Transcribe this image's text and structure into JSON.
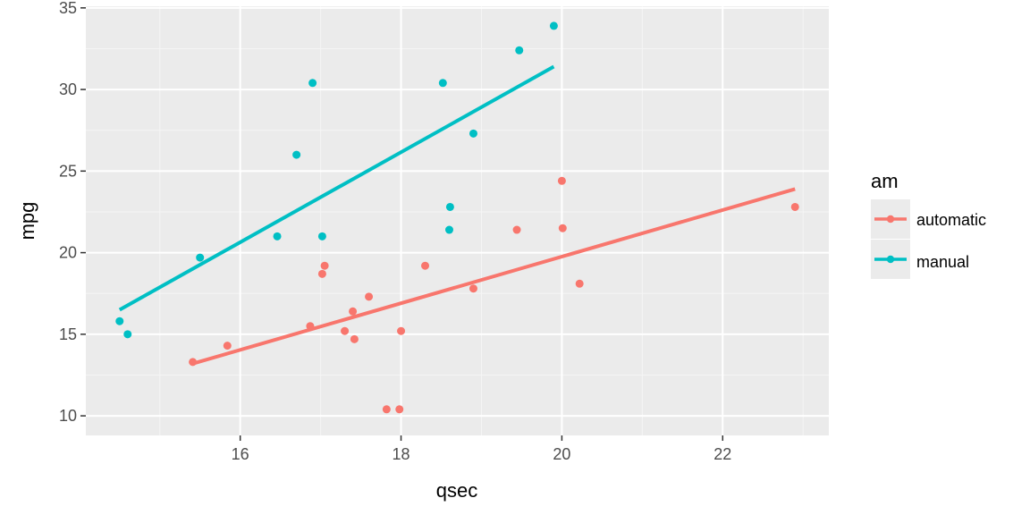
{
  "chart_data": {
    "type": "scatter",
    "title": "",
    "xlabel": "qsec",
    "ylabel": "mpg",
    "xlim": [
      14.08,
      23.32
    ],
    "ylim": [
      8.8,
      35.1
    ],
    "x_ticks": [
      16,
      18,
      20,
      22
    ],
    "y_ticks": [
      10,
      15,
      20,
      25,
      30,
      35
    ],
    "x_tick_labels": [
      "16",
      "18",
      "20",
      "22"
    ],
    "y_tick_labels": [
      "10",
      "15",
      "20",
      "25",
      "30",
      "35"
    ],
    "grid": true,
    "legend": {
      "title": "am",
      "position": "right"
    },
    "series": [
      {
        "name": "automatic",
        "color": "#F8766D",
        "points": [
          [
            19.44,
            21.4
          ],
          [
            17.02,
            18.7
          ],
          [
            20.22,
            18.1
          ],
          [
            15.84,
            14.3
          ],
          [
            20.0,
            24.4
          ],
          [
            22.9,
            22.8
          ],
          [
            18.3,
            19.2
          ],
          [
            18.9,
            17.8
          ],
          [
            17.4,
            16.4
          ],
          [
            17.6,
            17.3
          ],
          [
            18.0,
            15.2
          ],
          [
            17.98,
            10.4
          ],
          [
            17.82,
            10.4
          ],
          [
            17.42,
            14.7
          ],
          [
            20.01,
            21.5
          ],
          [
            16.87,
            15.5
          ],
          [
            17.3,
            15.2
          ],
          [
            15.41,
            13.3
          ],
          [
            17.05,
            19.2
          ]
        ],
        "fit": {
          "x": [
            15.41,
            22.9
          ],
          "y": [
            13.2,
            23.9
          ]
        }
      },
      {
        "name": "manual",
        "color": "#00BFC4",
        "points": [
          [
            16.46,
            21.0
          ],
          [
            17.02,
            21.0
          ],
          [
            18.61,
            22.8
          ],
          [
            19.47,
            32.4
          ],
          [
            18.52,
            30.4
          ],
          [
            19.9,
            33.9
          ],
          [
            18.9,
            27.3
          ],
          [
            16.7,
            26.0
          ],
          [
            16.9,
            30.4
          ],
          [
            14.5,
            15.8
          ],
          [
            15.5,
            19.7
          ],
          [
            14.6,
            15.0
          ],
          [
            18.6,
            21.4
          ]
        ],
        "fit": {
          "x": [
            14.5,
            19.9
          ],
          "y": [
            16.5,
            31.4
          ]
        }
      }
    ]
  }
}
